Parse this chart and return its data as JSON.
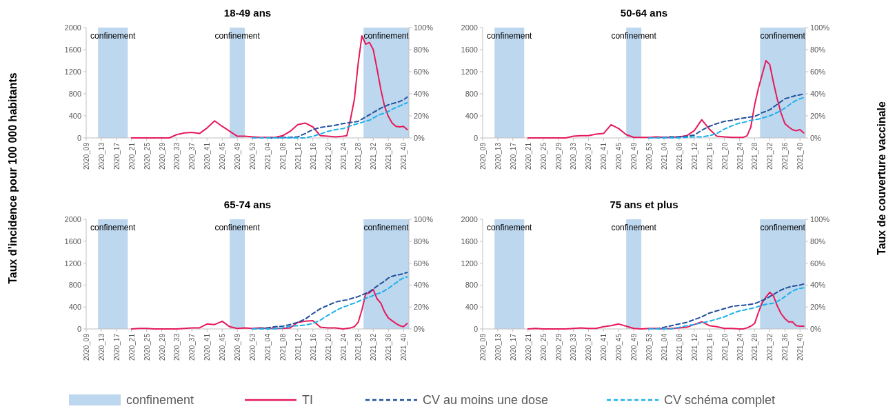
{
  "chart_data": [
    {
      "type": "line",
      "title": "18-49 ans",
      "ylabel": "Taux d’incidence pour 100 000 habitants",
      "legend": "bottom",
      "x": [
        "2020-05-18",
        "2020-06-01",
        "2020-06-15",
        "2020-06-29",
        "2020-07-13",
        "2020-07-27",
        "2020-08-10",
        "2020-08-24",
        "2020-09-07",
        "2020-09-21",
        "2020-10-05",
        "2020-10-19",
        "2020-11-02",
        "2020-11-16",
        "2020-11-30",
        "2020-12-14",
        "2020-12-28",
        "2021-01-11",
        "2021-01-25",
        "2021-02-08",
        "2021-02-22",
        "2021-03-08",
        "2021-03-22",
        "2021-04-05",
        "2021-04-19",
        "2021-05-03",
        "2021-05-17",
        "2021-05-31",
        "2021-06-14",
        "2021-06-21",
        "2021-06-28",
        "2021-07-05",
        "2021-07-12",
        "2021-07-19",
        "2021-07-26",
        "2021-08-02",
        "2021-08-09",
        "2021-08-16",
        "2021-08-23",
        "2021-08-30",
        "2021-09-06",
        "2021-09-13",
        "2021-09-20",
        "2021-09-27",
        "2021-10-04",
        "2021-10-11"
      ],
      "xlim": [
        "2020-02-24",
        "2021-10-14"
      ],
      "xticks": [
        {
          "value": "2020-02-24",
          "label": "2020_09"
        },
        {
          "value": "2020-03-23",
          "label": "2020_13"
        },
        {
          "value": "2020-04-20",
          "label": "2020_17"
        },
        {
          "value": "2020-05-18",
          "label": "2020_21"
        },
        {
          "value": "2020-06-15",
          "label": "2020_25"
        },
        {
          "value": "2020-07-13",
          "label": "2020_29"
        },
        {
          "value": "2020-08-10",
          "label": "2020_33"
        },
        {
          "value": "2020-09-07",
          "label": "2020_37"
        },
        {
          "value": "2020-10-05",
          "label": "2020_41"
        },
        {
          "value": "2020-11-02",
          "label": "2020_45"
        },
        {
          "value": "2020-11-30",
          "label": "2020_49"
        },
        {
          "value": "2020-12-28",
          "label": "2020_53"
        },
        {
          "value": "2021-01-25",
          "label": "2021_04"
        },
        {
          "value": "2021-02-22",
          "label": "2021_08"
        },
        {
          "value": "2021-03-22",
          "label": "2021_12"
        },
        {
          "value": "2021-04-19",
          "label": "2021_16"
        },
        {
          "value": "2021-05-17",
          "label": "2021_20"
        },
        {
          "value": "2021-06-14",
          "label": "2021_24"
        },
        {
          "value": "2021-07-12",
          "label": "2021_28"
        },
        {
          "value": "2021-08-09",
          "label": "2021_32"
        },
        {
          "value": "2021-09-06",
          "label": "2021_36"
        },
        {
          "value": "2021-10-04",
          "label": "2021_40"
        }
      ],
      "ylim": [
        0,
        2000
      ],
      "yticks": [
        0,
        400,
        800,
        1200,
        1600,
        2000
      ],
      "y2lim": [
        0,
        100
      ],
      "y2ticks": [
        {
          "value": 0,
          "label": "0%"
        },
        {
          "value": 20,
          "label": "20%"
        },
        {
          "value": 40,
          "label": "40%"
        },
        {
          "value": 60,
          "label": "60%"
        },
        {
          "value": 80,
          "label": "80%"
        },
        {
          "value": 100,
          "label": "100%"
        }
      ],
      "bands": [
        {
          "axis": "x",
          "from": "2020-03-17",
          "to": "2020-05-11",
          "label": "confinement",
          "color": "#bdd7ee"
        },
        {
          "axis": "x",
          "from": "2020-11-16",
          "to": "2020-12-14",
          "label": "confinement",
          "color": "#bdd7ee"
        },
        {
          "axis": "x",
          "from": "2021-07-22",
          "to": "2021-10-14",
          "label": "confinement",
          "color": "#bdd7ee"
        }
      ],
      "series": [
        {
          "name": "TI",
          "color": "#e6195a",
          "line_style": "solid",
          "values": [
            0,
            0,
            0,
            0,
            0,
            0,
            60,
            90,
            100,
            80,
            180,
            310,
            210,
            120,
            30,
            30,
            20,
            10,
            10,
            10,
            40,
            120,
            240,
            270,
            200,
            40,
            30,
            20,
            30,
            40,
            350,
            700,
            1350,
            1850,
            1700,
            1730,
            1600,
            1250,
            880,
            570,
            390,
            270,
            210,
            200,
            210,
            150
          ]
        },
        {
          "name": "CV au moins une dose",
          "color": "#1f4e9c",
          "line_style": "dashed",
          "axis": "y2",
          "values": [
            null,
            null,
            null,
            null,
            null,
            null,
            null,
            null,
            null,
            null,
            null,
            null,
            null,
            null,
            null,
            null,
            null,
            null,
            0,
            0,
            0.5,
            0.5,
            1,
            4,
            7.5,
            9.5,
            10.5,
            11.5,
            13,
            13.5,
            14,
            14.5,
            15,
            17,
            19,
            21,
            23,
            25,
            27,
            28.5,
            30,
            31,
            32,
            33,
            34.5,
            37
          ]
        },
        {
          "name": "CV schéma complet",
          "color": "#1cb0ea",
          "line_style": "dashed",
          "axis": "y2",
          "values": [
            null,
            null,
            null,
            null,
            null,
            null,
            null,
            null,
            null,
            null,
            null,
            null,
            null,
            null,
            null,
            null,
            0,
            0,
            0,
            0,
            0,
            0,
            0,
            0,
            1.5,
            3.5,
            6,
            7.5,
            8.5,
            9.5,
            11,
            12,
            13,
            14,
            15.5,
            16,
            18,
            20,
            21.5,
            22.5,
            24,
            26,
            27.5,
            29,
            30.5,
            32
          ]
        }
      ]
    },
    {
      "type": "line",
      "title": "50-64 ans",
      "y2label": "Taux de couverture vaccinale",
      "x": [
        "2020-05-18",
        "2020-06-01",
        "2020-06-15",
        "2020-06-29",
        "2020-07-13",
        "2020-07-27",
        "2020-08-10",
        "2020-08-24",
        "2020-09-07",
        "2020-09-21",
        "2020-10-05",
        "2020-10-19",
        "2020-11-02",
        "2020-11-16",
        "2020-11-30",
        "2020-12-14",
        "2020-12-28",
        "2021-01-11",
        "2021-01-25",
        "2021-02-08",
        "2021-02-22",
        "2021-03-08",
        "2021-03-22",
        "2021-04-05",
        "2021-04-19",
        "2021-05-03",
        "2021-05-17",
        "2021-05-31",
        "2021-06-14",
        "2021-06-21",
        "2021-06-28",
        "2021-07-05",
        "2021-07-12",
        "2021-07-19",
        "2021-07-26",
        "2021-08-02",
        "2021-08-09",
        "2021-08-16",
        "2021-08-23",
        "2021-08-30",
        "2021-09-06",
        "2021-09-13",
        "2021-09-20",
        "2021-09-27",
        "2021-10-04",
        "2021-10-11"
      ],
      "xlim": [
        "2020-02-24",
        "2021-10-14"
      ],
      "xticks": [
        {
          "value": "2020-02-24",
          "label": "2020_09"
        },
        {
          "value": "2020-03-23",
          "label": "2020_13"
        },
        {
          "value": "2020-04-20",
          "label": "2020_17"
        },
        {
          "value": "2020-05-18",
          "label": "2020_21"
        },
        {
          "value": "2020-06-15",
          "label": "2020_25"
        },
        {
          "value": "2020-07-13",
          "label": "2020_29"
        },
        {
          "value": "2020-08-10",
          "label": "2020_33"
        },
        {
          "value": "2020-09-07",
          "label": "2020_37"
        },
        {
          "value": "2020-10-05",
          "label": "2020_41"
        },
        {
          "value": "2020-11-02",
          "label": "2020_45"
        },
        {
          "value": "2020-11-30",
          "label": "2020_49"
        },
        {
          "value": "2020-12-28",
          "label": "2020_53"
        },
        {
          "value": "2021-01-25",
          "label": "2021_04"
        },
        {
          "value": "2021-02-22",
          "label": "2021_08"
        },
        {
          "value": "2021-03-22",
          "label": "2021_12"
        },
        {
          "value": "2021-04-19",
          "label": "2021_16"
        },
        {
          "value": "2021-05-17",
          "label": "2021_20"
        },
        {
          "value": "2021-06-14",
          "label": "2021_24"
        },
        {
          "value": "2021-07-12",
          "label": "2021_28"
        },
        {
          "value": "2021-08-09",
          "label": "2021_32"
        },
        {
          "value": "2021-09-06",
          "label": "2021_36"
        },
        {
          "value": "2021-10-04",
          "label": "2021_40"
        }
      ],
      "ylim": [
        0,
        2000
      ],
      "yticks": [
        0,
        400,
        800,
        1200,
        1600,
        2000
      ],
      "y2lim": [
        0,
        100
      ],
      "y2ticks": [
        {
          "value": 0,
          "label": "0%"
        },
        {
          "value": 20,
          "label": "20%"
        },
        {
          "value": 40,
          "label": "40%"
        },
        {
          "value": 60,
          "label": "60%"
        },
        {
          "value": 80,
          "label": "80%"
        },
        {
          "value": 100,
          "label": "100%"
        }
      ],
      "bands": [
        {
          "axis": "x",
          "from": "2020-03-17",
          "to": "2020-05-11",
          "label": "confinement",
          "color": "#bdd7ee"
        },
        {
          "axis": "x",
          "from": "2020-11-16",
          "to": "2020-12-14",
          "label": "confinement",
          "color": "#bdd7ee"
        },
        {
          "axis": "x",
          "from": "2021-07-22",
          "to": "2021-10-14",
          "label": "confinement",
          "color": "#bdd7ee"
        }
      ],
      "series": [
        {
          "color": "#e6195a",
          "line_style": "solid",
          "values": [
            0,
            0,
            0,
            0,
            0,
            0,
            30,
            40,
            40,
            70,
            80,
            240,
            170,
            60,
            10,
            10,
            10,
            20,
            10,
            10,
            20,
            40,
            130,
            330,
            160,
            30,
            20,
            10,
            10,
            10,
            40,
            200,
            600,
            900,
            1150,
            1400,
            1330,
            1000,
            700,
            450,
            260,
            200,
            150,
            130,
            150,
            90
          ]
        },
        {
          "color": "#1f4e9c",
          "line_style": "dashed",
          "axis": "y2",
          "values": [
            null,
            null,
            null,
            null,
            null,
            null,
            null,
            null,
            null,
            null,
            null,
            null,
            null,
            null,
            null,
            null,
            0,
            0,
            0.5,
            1,
            1,
            1.5,
            2.5,
            7,
            10.5,
            13,
            15,
            16,
            17.5,
            18,
            18.5,
            19,
            19.5,
            21,
            23,
            24,
            25.5,
            28,
            30.5,
            33,
            35.5,
            36.5,
            37.5,
            38.5,
            39,
            40
          ]
        },
        {
          "color": "#1cb0ea",
          "line_style": "dashed",
          "axis": "y2",
          "values": [
            null,
            null,
            null,
            null,
            null,
            null,
            null,
            null,
            null,
            null,
            null,
            null,
            null,
            null,
            null,
            null,
            0,
            0,
            0,
            0,
            0,
            0.5,
            1,
            1,
            2,
            4,
            8,
            11,
            13.5,
            14,
            15,
            16,
            16.5,
            17,
            18,
            19,
            20,
            21.5,
            23,
            25,
            27,
            29.5,
            32,
            34,
            35.5,
            36.5
          ]
        }
      ]
    },
    {
      "type": "line",
      "title": "65-74 ans",
      "x": [
        "2020-05-18",
        "2020-06-01",
        "2020-06-15",
        "2020-06-29",
        "2020-07-13",
        "2020-07-27",
        "2020-08-10",
        "2020-08-24",
        "2020-09-07",
        "2020-09-21",
        "2020-10-05",
        "2020-10-19",
        "2020-11-02",
        "2020-11-16",
        "2020-11-30",
        "2020-12-14",
        "2020-12-28",
        "2021-01-11",
        "2021-01-25",
        "2021-02-08",
        "2021-02-22",
        "2021-03-08",
        "2021-03-22",
        "2021-04-05",
        "2021-04-19",
        "2021-05-03",
        "2021-05-17",
        "2021-05-31",
        "2021-06-14",
        "2021-06-21",
        "2021-06-28",
        "2021-07-05",
        "2021-07-12",
        "2021-07-19",
        "2021-07-26",
        "2021-08-02",
        "2021-08-09",
        "2021-08-16",
        "2021-08-23",
        "2021-08-30",
        "2021-09-06",
        "2021-09-13",
        "2021-09-20",
        "2021-09-27",
        "2021-10-04",
        "2021-10-11"
      ],
      "xlim": [
        "2020-02-24",
        "2021-10-14"
      ],
      "xticks": [
        {
          "value": "2020-02-24",
          "label": "2020_09"
        },
        {
          "value": "2020-03-23",
          "label": "2020_13"
        },
        {
          "value": "2020-04-20",
          "label": "2020_17"
        },
        {
          "value": "2020-05-18",
          "label": "2020_21"
        },
        {
          "value": "2020-06-15",
          "label": "2020_25"
        },
        {
          "value": "2020-07-13",
          "label": "2020_29"
        },
        {
          "value": "2020-08-10",
          "label": "2020_33"
        },
        {
          "value": "2020-09-07",
          "label": "2020_37"
        },
        {
          "value": "2020-10-05",
          "label": "2020_41"
        },
        {
          "value": "2020-11-02",
          "label": "2020_45"
        },
        {
          "value": "2020-11-30",
          "label": "2020_49"
        },
        {
          "value": "2020-12-28",
          "label": "2020_53"
        },
        {
          "value": "2021-01-25",
          "label": "2021_04"
        },
        {
          "value": "2021-02-22",
          "label": "2021_08"
        },
        {
          "value": "2021-03-22",
          "label": "2021_12"
        },
        {
          "value": "2021-04-19",
          "label": "2021_16"
        },
        {
          "value": "2021-05-17",
          "label": "2021_20"
        },
        {
          "value": "2021-06-14",
          "label": "2021_24"
        },
        {
          "value": "2021-07-12",
          "label": "2021_28"
        },
        {
          "value": "2021-08-09",
          "label": "2021_32"
        },
        {
          "value": "2021-09-06",
          "label": "2021_36"
        },
        {
          "value": "2021-10-04",
          "label": "2021_40"
        }
      ],
      "ylim": [
        0,
        2000
      ],
      "yticks": [
        0,
        400,
        800,
        1200,
        1600,
        2000
      ],
      "y2lim": [
        0,
        100
      ],
      "y2ticks": [
        {
          "value": 0,
          "label": "0%"
        },
        {
          "value": 20,
          "label": "20%"
        },
        {
          "value": 40,
          "label": "40%"
        },
        {
          "value": 60,
          "label": "60%"
        },
        {
          "value": 80,
          "label": "80%"
        },
        {
          "value": 100,
          "label": "100%"
        }
      ],
      "bands": [
        {
          "axis": "x",
          "from": "2020-03-17",
          "to": "2020-05-11",
          "label": "confinement",
          "color": "#bdd7ee"
        },
        {
          "axis": "x",
          "from": "2020-11-16",
          "to": "2020-12-14",
          "label": "confinement",
          "color": "#bdd7ee"
        },
        {
          "axis": "x",
          "from": "2021-07-22",
          "to": "2021-10-14",
          "label": "confinement",
          "color": "#bdd7ee"
        }
      ],
      "series": [
        {
          "color": "#e6195a",
          "line_style": "solid",
          "values": [
            0,
            10,
            10,
            0,
            0,
            0,
            0,
            10,
            20,
            20,
            90,
            80,
            140,
            40,
            10,
            20,
            10,
            20,
            10,
            10,
            10,
            20,
            120,
            140,
            150,
            30,
            20,
            20,
            0,
            10,
            20,
            40,
            120,
            350,
            640,
            660,
            720,
            550,
            470,
            310,
            200,
            150,
            100,
            60,
            40,
            100
          ]
        },
        {
          "color": "#1f4e9c",
          "line_style": "dashed",
          "axis": "y2",
          "values": [
            null,
            null,
            null,
            null,
            null,
            null,
            null,
            null,
            null,
            null,
            null,
            null,
            null,
            null,
            null,
            null,
            0,
            0.5,
            1,
            2,
            2.5,
            4,
            6,
            9,
            14,
            18.5,
            21.5,
            24.5,
            26,
            26.5,
            27.5,
            28.5,
            29.5,
            31,
            32.5,
            34,
            36.5,
            39,
            41.5,
            43.5,
            46.5,
            48,
            49,
            49.5,
            50.5,
            51.5
          ]
        },
        {
          "color": "#1cb0ea",
          "line_style": "dashed",
          "axis": "y2",
          "values": [
            null,
            null,
            null,
            null,
            null,
            null,
            null,
            null,
            null,
            null,
            null,
            null,
            null,
            null,
            null,
            null,
            0,
            0,
            0,
            0,
            1,
            2.5,
            3,
            3.5,
            5,
            8,
            12.5,
            16.5,
            20,
            21,
            22.5,
            23.5,
            25,
            26.5,
            28,
            29,
            30.5,
            32,
            33,
            35,
            37,
            39.5,
            42,
            44.5,
            46.5,
            47.5
          ]
        }
      ]
    },
    {
      "type": "line",
      "title": "75 ans et plus",
      "x": [
        "2020-05-18",
        "2020-06-01",
        "2020-06-15",
        "2020-06-29",
        "2020-07-13",
        "2020-07-27",
        "2020-08-10",
        "2020-08-24",
        "2020-09-07",
        "2020-09-21",
        "2020-10-05",
        "2020-10-19",
        "2020-11-02",
        "2020-11-16",
        "2020-11-30",
        "2020-12-14",
        "2020-12-28",
        "2021-01-11",
        "2021-01-25",
        "2021-02-08",
        "2021-02-22",
        "2021-03-08",
        "2021-03-22",
        "2021-04-05",
        "2021-04-19",
        "2021-05-03",
        "2021-05-17",
        "2021-05-31",
        "2021-06-14",
        "2021-06-21",
        "2021-06-28",
        "2021-07-05",
        "2021-07-12",
        "2021-07-19",
        "2021-07-26",
        "2021-08-02",
        "2021-08-09",
        "2021-08-16",
        "2021-08-23",
        "2021-08-30",
        "2021-09-06",
        "2021-09-13",
        "2021-09-20",
        "2021-09-27",
        "2021-10-04",
        "2021-10-11"
      ],
      "xlim": [
        "2020-02-24",
        "2021-10-14"
      ],
      "xticks": [
        {
          "value": "2020-02-24",
          "label": "2020_09"
        },
        {
          "value": "2020-03-23",
          "label": "2020_13"
        },
        {
          "value": "2020-04-20",
          "label": "2020_17"
        },
        {
          "value": "2020-05-18",
          "label": "2020_21"
        },
        {
          "value": "2020-06-15",
          "label": "2020_25"
        },
        {
          "value": "2020-07-13",
          "label": "2020_29"
        },
        {
          "value": "2020-08-10",
          "label": "2020_33"
        },
        {
          "value": "2020-09-07",
          "label": "2020_37"
        },
        {
          "value": "2020-10-05",
          "label": "2020_41"
        },
        {
          "value": "2020-11-02",
          "label": "2020_45"
        },
        {
          "value": "2020-11-30",
          "label": "2020_49"
        },
        {
          "value": "2020-12-28",
          "label": "2020_53"
        },
        {
          "value": "2021-01-25",
          "label": "2021_04"
        },
        {
          "value": "2021-02-22",
          "label": "2021_08"
        },
        {
          "value": "2021-03-22",
          "label": "2021_12"
        },
        {
          "value": "2021-04-19",
          "label": "2021_16"
        },
        {
          "value": "2021-05-17",
          "label": "2021_20"
        },
        {
          "value": "2021-06-14",
          "label": "2021_24"
        },
        {
          "value": "2021-07-12",
          "label": "2021_28"
        },
        {
          "value": "2021-08-09",
          "label": "2021_32"
        },
        {
          "value": "2021-09-06",
          "label": "2021_36"
        },
        {
          "value": "2021-10-04",
          "label": "2021_40"
        }
      ],
      "ylim": [
        0,
        2000
      ],
      "yticks": [
        0,
        400,
        800,
        1200,
        1600,
        2000
      ],
      "y2lim": [
        0,
        100
      ],
      "y2ticks": [
        {
          "value": 0,
          "label": "0%"
        },
        {
          "value": 20,
          "label": "20%"
        },
        {
          "value": 40,
          "label": "40%"
        },
        {
          "value": 60,
          "label": "60%"
        },
        {
          "value": 80,
          "label": "80%"
        },
        {
          "value": 100,
          "label": "100%"
        }
      ],
      "bands": [
        {
          "axis": "x",
          "from": "2020-03-17",
          "to": "2020-05-11",
          "label": "confinement",
          "color": "#bdd7ee"
        },
        {
          "axis": "x",
          "from": "2020-11-16",
          "to": "2020-12-14",
          "label": "confinement",
          "color": "#bdd7ee"
        },
        {
          "axis": "x",
          "from": "2021-07-22",
          "to": "2021-10-14",
          "label": "confinement",
          "color": "#bdd7ee"
        }
      ],
      "series": [
        {
          "color": "#e6195a",
          "line_style": "solid",
          "values": [
            0,
            10,
            0,
            0,
            0,
            0,
            10,
            20,
            10,
            10,
            40,
            60,
            90,
            50,
            10,
            0,
            10,
            10,
            0,
            10,
            20,
            30,
            80,
            130,
            60,
            40,
            10,
            10,
            0,
            0,
            20,
            50,
            100,
            300,
            480,
            580,
            670,
            600,
            420,
            280,
            190,
            130,
            130,
            60,
            50,
            50
          ]
        },
        {
          "color": "#1f4e9c",
          "line_style": "dashed",
          "axis": "y2",
          "values": [
            null,
            null,
            null,
            null,
            null,
            null,
            null,
            null,
            null,
            null,
            null,
            null,
            null,
            null,
            null,
            null,
            0,
            0,
            1.5,
            3,
            4.5,
            6,
            8.5,
            11,
            14.5,
            16.5,
            18.5,
            20.5,
            21.5,
            21.5,
            22,
            22.5,
            23,
            24.5,
            26,
            27.5,
            29.5,
            31.5,
            33.5,
            35.5,
            37,
            38,
            39,
            39.5,
            40,
            41
          ]
        },
        {
          "color": "#1cb0ea",
          "line_style": "dashed",
          "axis": "y2",
          "values": [
            null,
            null,
            null,
            null,
            null,
            null,
            null,
            null,
            null,
            null,
            null,
            null,
            null,
            null,
            null,
            null,
            0,
            0,
            0,
            0,
            1.5,
            3,
            4,
            5.5,
            7,
            9,
            11,
            14,
            16.5,
            17,
            18,
            18.5,
            19.5,
            20.5,
            21.5,
            22.5,
            23,
            23.5,
            25,
            27,
            29.5,
            32,
            34.5,
            36,
            37,
            37.5
          ]
        }
      ]
    }
  ]
}
